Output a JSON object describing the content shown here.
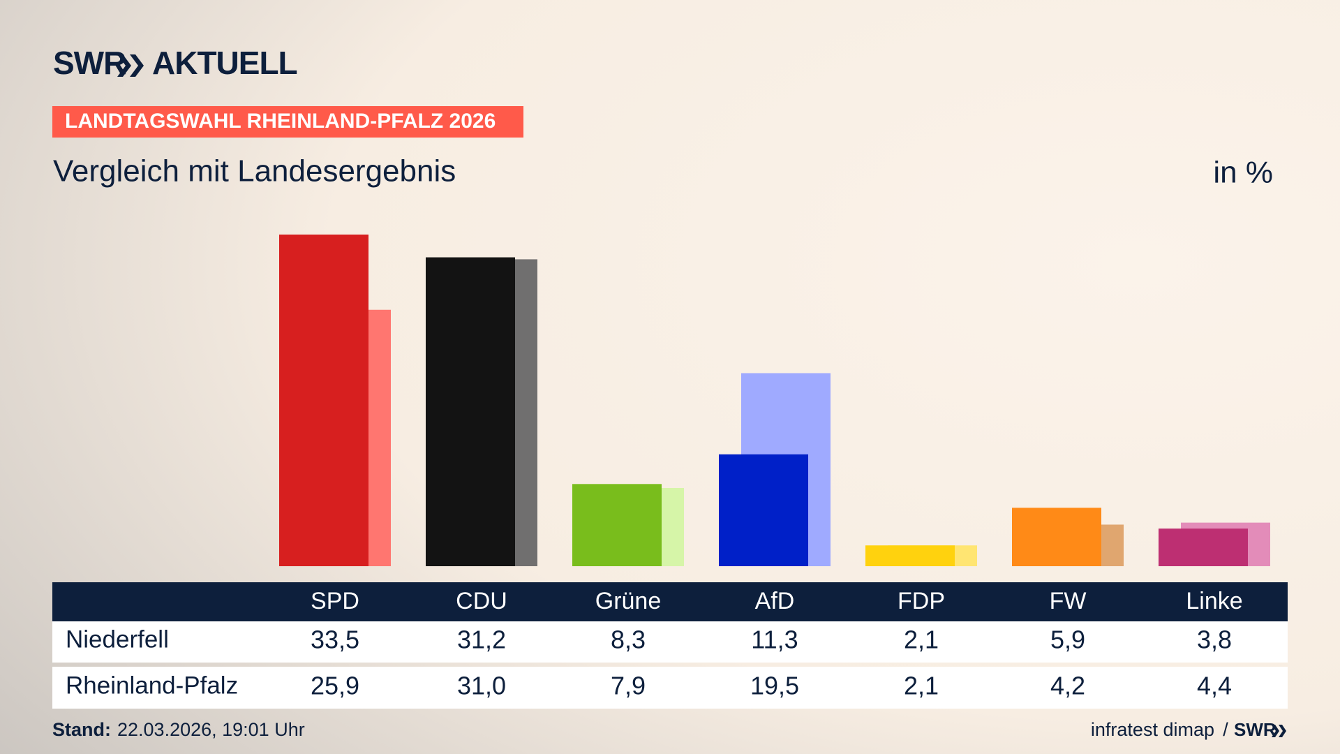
{
  "brand": {
    "logo": "SWR",
    "title": "AKTUELL"
  },
  "chart_data": {
    "type": "bar",
    "banner": "LANDTAGSWAHL RHEINLAND-PFALZ 2026",
    "title": "Vergleich mit Landesergebnis",
    "unit": "in %",
    "categories": [
      "SPD",
      "CDU",
      "Grüne",
      "AfD",
      "FDP",
      "FW",
      "Linke"
    ],
    "series": [
      {
        "name": "Niederfell",
        "colors": [
          "#d71f1f",
          "#131313",
          "#79bd1c",
          "#0020c8",
          "#ffd20e",
          "#ff8a17",
          "#bd2f72"
        ],
        "values": [
          33.5,
          31.2,
          8.3,
          11.3,
          2.1,
          5.9,
          3.8
        ],
        "value_labels": [
          "33,5",
          "31,2",
          "8,3",
          "11,3",
          "2,1",
          "5,9",
          "3,8"
        ]
      },
      {
        "name": "Rheinland-Pfalz",
        "colors": [
          "#ff7670",
          "#706f6f",
          "#d6f5a8",
          "#9faaff",
          "#ffe572",
          "#e0a66f",
          "#e38cb9"
        ],
        "values": [
          25.9,
          31.0,
          7.9,
          19.5,
          2.1,
          4.2,
          4.4
        ],
        "value_labels": [
          "25,9",
          "31,0",
          "7,9",
          "19,5",
          "2,1",
          "4,2",
          "4,4"
        ]
      }
    ]
  },
  "footer": {
    "stand_label": "Stand:",
    "stand": "22.03.2026, 19:01 Uhr",
    "source": "infratest dimap",
    "separator": "/",
    "logo": "SWR"
  }
}
